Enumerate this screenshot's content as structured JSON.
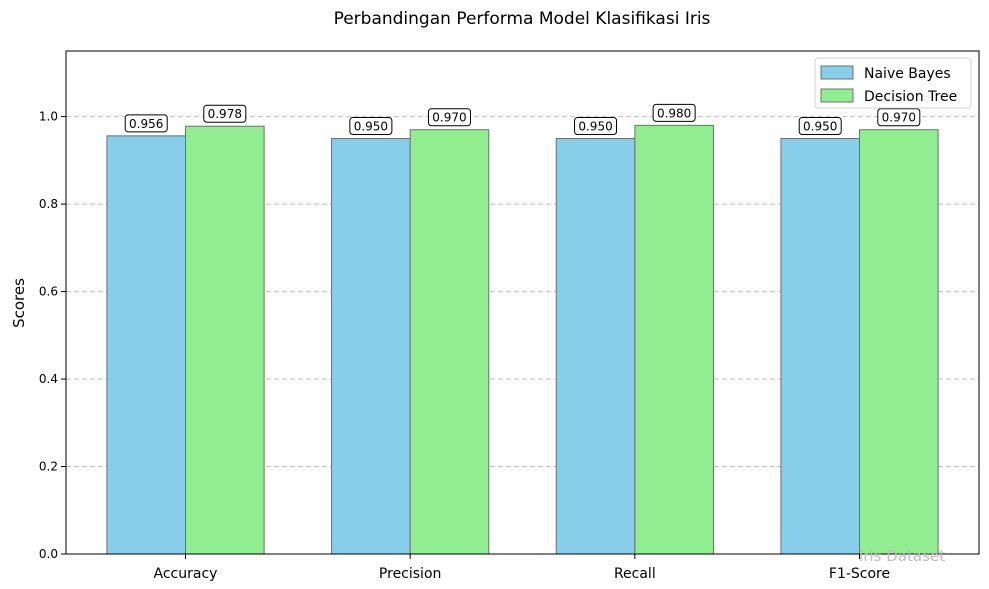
{
  "chart_data": {
    "type": "bar",
    "title": "Perbandingan Performa Model Klasifikasi Iris",
    "xlabel": "",
    "ylabel": "Scores",
    "categories": [
      "Accuracy",
      "Precision",
      "Recall",
      "F1-Score"
    ],
    "series": [
      {
        "name": "Naive Bayes",
        "values": [
          0.956,
          0.95,
          0.95,
          0.95
        ],
        "labels": [
          "0.956",
          "0.950",
          "0.950",
          "0.950"
        ],
        "color": "#87ceeb"
      },
      {
        "name": "Decision Tree",
        "values": [
          0.978,
          0.97,
          0.98,
          0.97
        ],
        "labels": [
          "0.978",
          "0.970",
          "0.980",
          "0.970"
        ],
        "color": "#90ee90"
      }
    ],
    "ylim": [
      0,
      1.15
    ],
    "yticks": [
      "0.0",
      "0.2",
      "0.4",
      "0.6",
      "0.8",
      "1.0"
    ],
    "grid": "y-dashed",
    "legend_position": "top-right",
    "watermark": "Iris Dataset",
    "bar_edge_color": "#6f6f6f"
  }
}
